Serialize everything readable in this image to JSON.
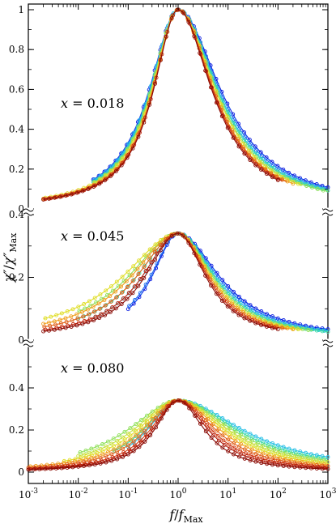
{
  "figure": {
    "xlabel": "f/f_Max",
    "ylabel": "χ''/χ''_Max"
  },
  "chart_data": {
    "type": "line",
    "xscale": "log",
    "xlim": [
      0.001,
      1000
    ],
    "x_ticks": [
      {
        "value": 0.001,
        "base": "10",
        "exp": "-3"
      },
      {
        "value": 0.01,
        "base": "10",
        "exp": "-2"
      },
      {
        "value": 0.1,
        "base": "10",
        "exp": "-1"
      },
      {
        "value": 1,
        "base": "10",
        "exp": "0"
      },
      {
        "value": 10,
        "base": "10",
        "exp": "1"
      },
      {
        "value": 100,
        "base": "10",
        "exp": "2"
      },
      {
        "value": 1000,
        "base": "10",
        "exp": "3"
      }
    ],
    "xlabel": "f/f_Max",
    "ylabel": "χ''/χ''_Max",
    "grid": false,
    "colormap": [
      "#0a1de0",
      "#1e6cf0",
      "#28c0e6",
      "#3ad9a6",
      "#8fe05a",
      "#e0de28",
      "#f0a020",
      "#e06018",
      "#c42810",
      "#8a0c06"
    ],
    "panels": [
      {
        "label": "x = 0.018",
        "ylim": [
          0,
          1
        ],
        "y_ticks": [
          "0",
          "0.2",
          "0.4",
          "0.6",
          "0.8",
          "1"
        ],
        "peak": 1.0,
        "series": [
          {
            "color": "#0a1de0",
            "width_low": 1.05,
            "width_high": 1.55,
            "x_min": 0.02,
            "x_max": 1000
          },
          {
            "color": "#1e6cf0",
            "width_low": 1.04,
            "width_high": 1.5,
            "x_min": 0.02,
            "x_max": 1000
          },
          {
            "color": "#28c0e6",
            "width_low": 1.02,
            "width_high": 1.45,
            "x_min": 0.02,
            "x_max": 1000
          },
          {
            "color": "#3ad9a6",
            "width_low": 1.0,
            "width_high": 1.42,
            "x_min": 0.02,
            "x_max": 1000
          },
          {
            "color": "#8fe05a",
            "width_low": 0.98,
            "width_high": 1.38,
            "x_min": 0.02,
            "x_max": 1000
          },
          {
            "color": "#e0de28",
            "width_low": 0.96,
            "width_high": 1.35,
            "x_min": 0.002,
            "x_max": 300
          },
          {
            "color": "#f0a020",
            "width_low": 0.93,
            "width_high": 1.3,
            "x_min": 0.002,
            "x_max": 200
          },
          {
            "color": "#e06018",
            "width_low": 0.91,
            "width_high": 1.28,
            "x_min": 0.002,
            "x_max": 150
          },
          {
            "color": "#c42810",
            "width_low": 0.9,
            "width_high": 1.25,
            "x_min": 0.002,
            "x_max": 120
          },
          {
            "color": "#8a0c06",
            "width_low": 0.89,
            "width_high": 1.22,
            "x_min": 0.002,
            "x_max": 100
          }
        ]
      },
      {
        "label": "x = 0.045",
        "ylim": [
          0,
          0.4
        ],
        "y_ticks": [
          "0",
          "0.2",
          "0.4"
        ],
        "peak": 0.34,
        "series": [
          {
            "color": "#0a1de0",
            "width_low": 0.95,
            "width_high": 1.5,
            "x_min": 0.1,
            "x_max": 1000
          },
          {
            "color": "#1e6cf0",
            "width_low": 1.0,
            "width_high": 1.42,
            "x_min": 0.1,
            "x_max": 1000
          },
          {
            "color": "#28c0e6",
            "width_low": 1.3,
            "width_high": 1.35,
            "x_min": 0.02,
            "x_max": 1000
          },
          {
            "color": "#3ad9a6",
            "width_low": 1.5,
            "width_high": 1.3,
            "x_min": 0.01,
            "x_max": 1000
          },
          {
            "color": "#8fe05a",
            "width_low": 1.8,
            "width_high": 1.25,
            "x_min": 0.01,
            "x_max": 500
          },
          {
            "color": "#e0de28",
            "width_low": 2.0,
            "width_high": 1.2,
            "x_min": 0.002,
            "x_max": 300
          },
          {
            "color": "#f0a020",
            "width_low": 1.7,
            "width_high": 1.15,
            "x_min": 0.002,
            "x_max": 200
          },
          {
            "color": "#e06018",
            "width_low": 1.5,
            "width_high": 1.1,
            "x_min": 0.002,
            "x_max": 150
          },
          {
            "color": "#c42810",
            "width_low": 1.3,
            "width_high": 1.05,
            "x_min": 0.002,
            "x_max": 100
          },
          {
            "color": "#8a0c06",
            "width_low": 1.2,
            "width_high": 1.0,
            "x_min": 0.002,
            "x_max": 100
          }
        ]
      },
      {
        "label": "x = 0.080",
        "ylim": [
          0,
          0.6
        ],
        "y_ticks": [
          "0",
          "0.2",
          "0.4"
        ],
        "peak": 0.34,
        "series": [
          {
            "color": "#28c0e6",
            "width_low": 1.1,
            "width_high": 2.3,
            "x_min": 0.1,
            "x_max": 1000
          },
          {
            "color": "#3ad9a6",
            "width_low": 1.25,
            "width_high": 2.1,
            "x_min": 0.05,
            "x_max": 1000
          },
          {
            "color": "#8fe05a",
            "width_low": 1.8,
            "width_high": 1.95,
            "x_min": 0.01,
            "x_max": 1000
          },
          {
            "color": "#c4e040",
            "width_low": 1.6,
            "width_high": 1.8,
            "x_min": 0.01,
            "x_max": 1000
          },
          {
            "color": "#e0de28",
            "width_low": 1.45,
            "width_high": 1.65,
            "x_min": 0.005,
            "x_max": 1000
          },
          {
            "color": "#f0a020",
            "width_low": 1.3,
            "width_high": 1.5,
            "x_min": 0.001,
            "x_max": 1000
          },
          {
            "color": "#e06018",
            "width_low": 1.15,
            "width_high": 1.35,
            "x_min": 0.001,
            "x_max": 1000
          },
          {
            "color": "#d03814",
            "width_low": 1.0,
            "width_high": 1.2,
            "x_min": 0.001,
            "x_max": 1000
          },
          {
            "color": "#b01c0c",
            "width_low": 0.92,
            "width_high": 1.08,
            "x_min": 0.001,
            "x_max": 1000
          },
          {
            "color": "#8a0c06",
            "width_low": 0.85,
            "width_high": 0.95,
            "x_min": 0.001,
            "x_max": 1000
          }
        ]
      }
    ]
  }
}
